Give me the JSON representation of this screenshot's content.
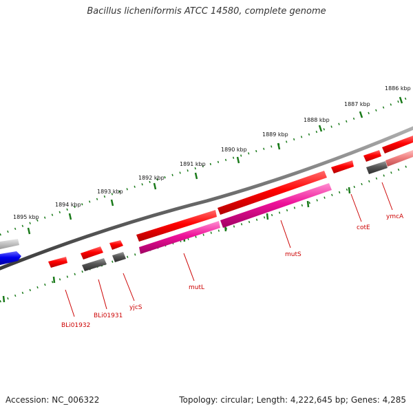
{
  "title": "Bacillus licheniformis ATCC 14580, complete genome",
  "accession_label": "Accession: NC_006322",
  "topology_label": "Topology: circular; Length: 4,222,645 bp; Genes: 4,285",
  "colors": {
    "backbone": "#7a7a7a",
    "tick": "#1a7a1a",
    "gene_forward": "#ff1010",
    "gene_reverse": "#ff1010",
    "gene_gray": "#555555",
    "gene_blue": "#1010ee",
    "gene_magenta": "#ee1199",
    "label": "#cc0000"
  },
  "kbp_labels": [
    "1886 kbp",
    "1887 kbp",
    "1888 kbp",
    "1889 kbp",
    "1890 kbp",
    "1891 kbp",
    "1892 kbp",
    "1893 kbp",
    "1894 kbp",
    "1895 kbp"
  ],
  "gene_labels": [
    "ymcA",
    "cotE",
    "mutS",
    "mutL",
    "yjcS",
    "BLi01931",
    "BLi01932"
  ]
}
